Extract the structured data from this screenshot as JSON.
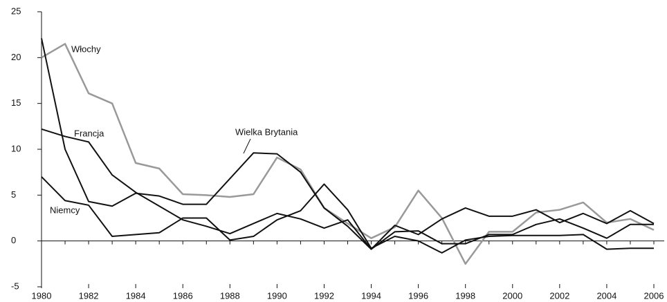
{
  "chart_data": {
    "type": "line",
    "x": [
      1980,
      1981,
      1982,
      1983,
      1984,
      1985,
      1986,
      1987,
      1988,
      1989,
      1990,
      1991,
      1992,
      1993,
      1994,
      1995,
      1996,
      1997,
      1998,
      1999,
      2000,
      2001,
      2002,
      2003,
      2004,
      2005,
      2006
    ],
    "xlim": [
      1980,
      2006
    ],
    "xticks": [
      1980,
      1982,
      1984,
      1986,
      1988,
      1990,
      1992,
      1994,
      1996,
      1998,
      2000,
      2002,
      2004,
      2006
    ],
    "ylim": [
      -5,
      25
    ],
    "yticks": [
      -5,
      0,
      5,
      10,
      15,
      20,
      25
    ],
    "series": [
      {
        "name": "Włochy",
        "color": "#999999",
        "values": [
          20.0,
          21.5,
          16.1,
          15.0,
          8.5,
          7.9,
          5.1,
          5.0,
          4.8,
          5.1,
          9.1,
          7.8,
          3.6,
          1.9,
          0.3,
          1.5,
          5.5,
          2.5,
          -2.5,
          1.0,
          1.0,
          3.1,
          3.4,
          4.2,
          2.0,
          2.4,
          1.2
        ]
      },
      {
        "name": "Wielka Brytania",
        "color": "#111111",
        "values": [
          22.1,
          10.0,
          4.3,
          3.8,
          5.2,
          4.9,
          4.0,
          4.0,
          6.8,
          9.6,
          9.5,
          7.5,
          3.6,
          1.6,
          -0.9,
          1.7,
          0.7,
          2.4,
          3.6,
          2.7,
          2.7,
          3.4,
          2.0,
          3.0,
          1.9,
          3.3,
          1.9
        ]
      },
      {
        "name": "Francja",
        "color": "#111111",
        "values": [
          12.2,
          11.4,
          10.8,
          7.2,
          5.3,
          3.8,
          2.3,
          1.6,
          0.8,
          1.9,
          3.0,
          2.4,
          1.4,
          2.3,
          -0.9,
          1.0,
          1.1,
          -0.3,
          -0.3,
          0.7,
          0.7,
          1.8,
          2.4,
          1.4,
          0.3,
          1.8,
          1.8
        ]
      },
      {
        "name": "Niemcy",
        "color": "#111111",
        "values": [
          7.0,
          4.4,
          3.9,
          0.5,
          0.7,
          0.9,
          2.5,
          2.5,
          0.1,
          0.5,
          2.3,
          3.3,
          6.2,
          3.4,
          -0.8,
          0.5,
          0.0,
          -1.3,
          0.1,
          0.5,
          0.6,
          0.6,
          0.6,
          0.7,
          -0.9,
          -0.8,
          -0.8
        ]
      }
    ]
  }
}
